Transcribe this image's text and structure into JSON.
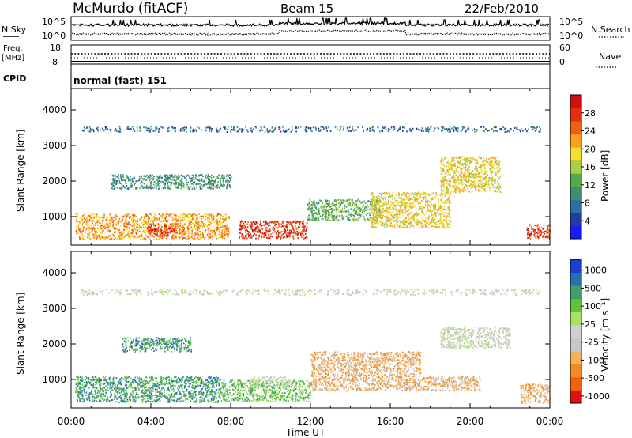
{
  "header": {
    "title": "McMurdo (fitACF)",
    "beam": "Beam 15",
    "date": "22/Feb/2010"
  },
  "summary_panels": {
    "nsky_label": "N.Sky",
    "nsky_ticks": [
      "10^5",
      "10^0"
    ],
    "nsearch_label": "N.Search",
    "nsearch_ticks": [
      "10^5",
      "10^0"
    ],
    "freq_label_1": "Freq.",
    "freq_label_2": "[MHz]",
    "freq_ticks": [
      "18",
      "8"
    ],
    "nave_label": "Nave",
    "nave_ticks": [
      "60",
      "0"
    ],
    "cpid_label": "CPID",
    "cpid_value": "normal (fast) 151"
  },
  "colors": {
    "power_scale": [
      "#1a1aff",
      "#1f3f9e",
      "#2e6fa0",
      "#3d8f6f",
      "#58a84a",
      "#a8d040",
      "#f2e030",
      "#f7a020",
      "#f06010",
      "#e03010",
      "#d01010"
    ],
    "velocity_scale": [
      "#e01010",
      "#f06010",
      "#f08c20",
      "#f5b060",
      "#c8c8c8",
      "#d0d0d0",
      "#a8e060",
      "#60c040",
      "#3e9f6a",
      "#2a6fb0",
      "#1a3fd0"
    ]
  },
  "chart_data": [
    {
      "type": "heatmap",
      "title": "",
      "quantity": "Power",
      "xlabel": "",
      "ylabel": "Slant Range [km]",
      "x_ticks": [
        "00:00",
        "04:00",
        "08:00",
        "12:00",
        "16:00",
        "20:00",
        "00:00"
      ],
      "y_ticks": [
        1000,
        2000,
        3000,
        4000
      ],
      "ylim": [
        200,
        4600
      ],
      "colorbar_label": "Power [dB]",
      "colorbar_ticks": [
        4,
        8,
        12,
        16,
        20,
        24,
        28
      ],
      "colorbar_range": [
        0,
        32
      ],
      "echo_regions": [
        {
          "t0": 0.2,
          "t1": 7.9,
          "r0": 380,
          "r1": 1100,
          "dB": 22
        },
        {
          "t0": 8.4,
          "t1": 11.8,
          "r0": 400,
          "r1": 900,
          "dB": 29
        },
        {
          "t0": 3.8,
          "t1": 5.2,
          "r0": 450,
          "r1": 800,
          "dB": 29
        },
        {
          "t0": 11.8,
          "t1": 15.5,
          "r0": 900,
          "r1": 1500,
          "dB": 14
        },
        {
          "t0": 15.0,
          "t1": 19.0,
          "r0": 700,
          "r1": 1700,
          "dB": 20
        },
        {
          "t0": 18.5,
          "t1": 21.5,
          "r0": 1700,
          "r1": 2700,
          "dB": 18
        },
        {
          "t0": 22.8,
          "t1": 24.0,
          "r0": 400,
          "r1": 800,
          "dB": 28
        },
        {
          "t0": 2.0,
          "t1": 8.0,
          "r0": 1800,
          "r1": 2200,
          "dB": 10
        },
        {
          "t0": 0.5,
          "t1": 23.5,
          "r0": 3400,
          "r1": 3550,
          "dB": 6
        }
      ]
    },
    {
      "type": "heatmap",
      "title": "",
      "quantity": "Velocity",
      "xlabel": "Time UT",
      "ylabel": "Slant Range [km]",
      "x_ticks": [
        "00:00",
        "04:00",
        "08:00",
        "12:00",
        "16:00",
        "20:00",
        "00:00"
      ],
      "y_ticks": [
        1000,
        2000,
        3000,
        4000
      ],
      "ylim": [
        200,
        4600
      ],
      "colorbar_label": "Velocity [m s⁻¹]",
      "colorbar_ticks": [
        "1000",
        "500",
        "100",
        "25",
        "-25",
        "-100",
        "-500",
        "-1000"
      ],
      "echo_regions": [
        {
          "t0": 0.2,
          "t1": 7.5,
          "r0": 380,
          "r1": 1100,
          "v": 300
        },
        {
          "t0": 7.5,
          "t1": 12.0,
          "r0": 400,
          "r1": 1000,
          "v": 80
        },
        {
          "t0": 9.0,
          "t1": 11.0,
          "r0": 800,
          "r1": 1100,
          "v": 0
        },
        {
          "t0": 12.0,
          "t1": 17.5,
          "r0": 700,
          "r1": 1800,
          "v": -120
        },
        {
          "t0": 17.5,
          "t1": 20.5,
          "r0": 700,
          "r1": 1100,
          "v": -250
        },
        {
          "t0": 18.5,
          "t1": 22.0,
          "r0": 1900,
          "r1": 2500,
          "v": 0
        },
        {
          "t0": 22.5,
          "t1": 24.0,
          "r0": 350,
          "r1": 900,
          "v": -300
        },
        {
          "t0": 2.5,
          "t1": 6.0,
          "r0": 1800,
          "r1": 2200,
          "v": 500
        },
        {
          "t0": 0.5,
          "t1": 23.5,
          "r0": 3400,
          "r1": 3550,
          "v": 0
        }
      ]
    }
  ]
}
